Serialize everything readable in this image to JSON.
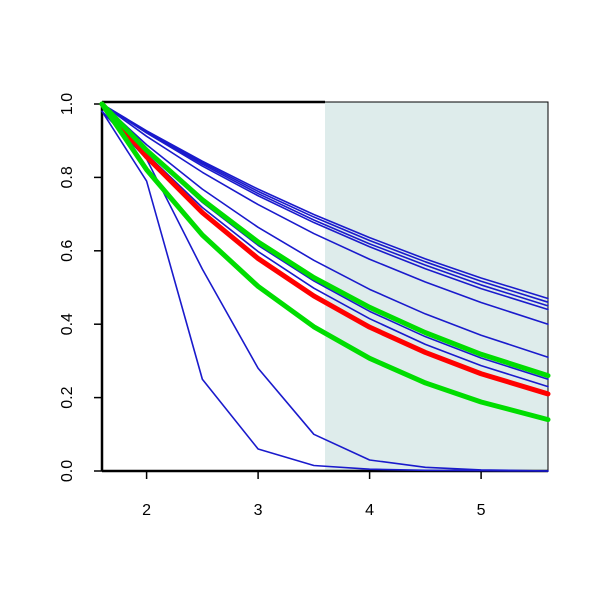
{
  "chart_data": {
    "type": "line",
    "x": [
      1.6,
      2.0,
      2.5,
      3.0,
      3.5,
      4.0,
      4.5,
      5.0,
      5.6
    ],
    "xlim": [
      1.6,
      5.6
    ],
    "xticks": [
      2,
      3,
      4,
      5
    ],
    "ylim": [
      0,
      1
    ],
    "yticks": [
      {
        "value": 0,
        "label": "0.0"
      },
      0.2,
      0.4,
      0.6,
      0.8,
      {
        "value": 1,
        "label": "1.0"
      }
    ],
    "highlight_x": [
      3.6,
      5.6
    ],
    "highlight_color": "#deeceb",
    "series": [
      {
        "color": "#1a1acc",
        "linewidth": 1.6,
        "values": [
          0.98,
          0.79,
          0.25,
          0.06,
          0.015,
          0.005,
          0.002,
          0.001,
          0
        ]
      },
      {
        "color": "#1a1acc",
        "linewidth": 1.6,
        "values": [
          0.98,
          0.85,
          0.55,
          0.28,
          0.1,
          0.03,
          0.01,
          0.003,
          0
        ]
      },
      {
        "color": "#1a1acc",
        "linewidth": 1.6,
        "values": [
          1,
          0.927,
          0.844,
          0.768,
          0.699,
          0.636,
          0.578,
          0.526,
          0.47
        ]
      },
      {
        "color": "#1a1acc",
        "linewidth": 1.6,
        "values": [
          1,
          0.925,
          0.84,
          0.762,
          0.692,
          0.628,
          0.57,
          0.517,
          0.46
        ]
      },
      {
        "color": "#1a1acc",
        "linewidth": 1.6,
        "values": [
          1,
          0.923,
          0.836,
          0.756,
          0.684,
          0.619,
          0.561,
          0.507,
          0.45
        ]
      },
      {
        "color": "#1a1acc",
        "linewidth": 1.6,
        "values": [
          1,
          0.921,
          0.831,
          0.75,
          0.677,
          0.611,
          0.551,
          0.497,
          0.44
        ]
      },
      {
        "color": "#1a1acc",
        "linewidth": 1.6,
        "values": [
          1,
          0.912,
          0.814,
          0.726,
          0.647,
          0.577,
          0.515,
          0.459,
          0.4
        ]
      },
      {
        "color": "#1a1acc",
        "linewidth": 1.6,
        "values": [
          1,
          0.889,
          0.768,
          0.664,
          0.574,
          0.495,
          0.428,
          0.37,
          0.31
        ]
      },
      {
        "color": "#1a1acc",
        "linewidth": 1.6,
        "values": [
          1,
          0.871,
          0.732,
          0.615,
          0.518,
          0.435,
          0.366,
          0.308,
          0.25
        ]
      },
      {
        "color": "#1a1acc",
        "linewidth": 1.6,
        "values": [
          1,
          0.863,
          0.718,
          0.598,
          0.498,
          0.415,
          0.345,
          0.287,
          0.23
        ]
      },
      {
        "color": "#ff0000",
        "linewidth": 5,
        "values": [
          1,
          0.856,
          0.704,
          0.579,
          0.477,
          0.392,
          0.323,
          0.265,
          0.21
        ]
      },
      {
        "color": "#00dd00",
        "linewidth": 5,
        "values": [
          1,
          0.874,
          0.739,
          0.624,
          0.527,
          0.446,
          0.377,
          0.318,
          0.26
        ]
      },
      {
        "color": "#00dd00",
        "linewidth": 5,
        "values": [
          1,
          0.821,
          0.643,
          0.503,
          0.393,
          0.307,
          0.24,
          0.188,
          0.14
        ]
      }
    ]
  }
}
